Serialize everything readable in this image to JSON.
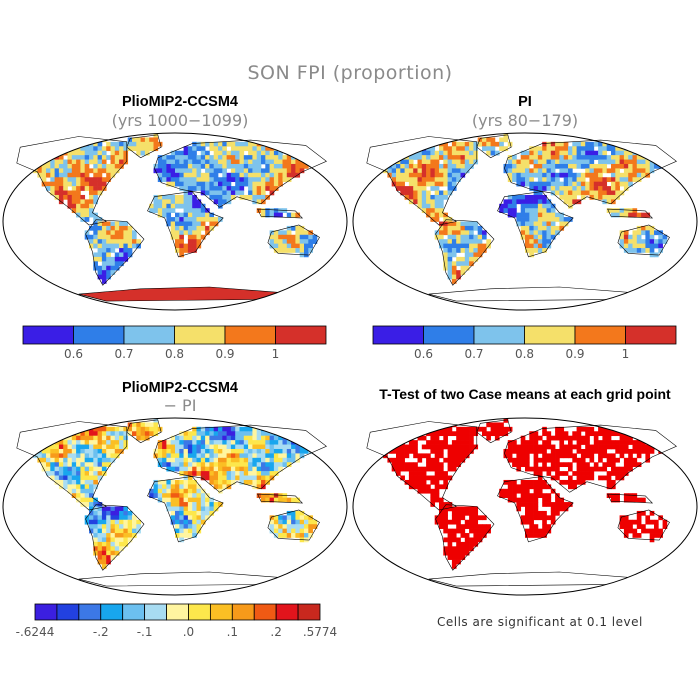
{
  "figure": {
    "title": "SON FPI (proportion)",
    "panels": [
      {
        "id": "a",
        "title": "PlioMIP2-CCSM4",
        "subtitle": "(yrs 1000−1099)"
      },
      {
        "id": "b",
        "title": "PI",
        "subtitle": "(yrs 80−179)"
      },
      {
        "id": "c",
        "title": "PlioMIP2-CCSM4",
        "subtitle": "− PI"
      },
      {
        "id": "d",
        "title": "T-Test of two Case means at each grid point",
        "subtitle": ""
      }
    ],
    "colorbar_top": {
      "colors": [
        "#3a1ee6",
        "#2f7ee8",
        "#7ec3ec",
        "#f5e06a",
        "#f3781c",
        "#d5302a"
      ],
      "labels": [
        "0.6",
        "0.7",
        "0.8",
        "0.9",
        "1"
      ]
    },
    "colorbar_diff": {
      "colors": [
        "#3b1fe0",
        "#2241e0",
        "#3c78e6",
        "#18a6ee",
        "#6cc0f0",
        "#a8dcf2",
        "#fff5a0",
        "#fde74c",
        "#fbbf24",
        "#f79a1a",
        "#f05a14",
        "#e2141c",
        "#c8281e"
      ],
      "labels": [
        "-.6244",
        "-.2",
        "-.1",
        ".0",
        ".1",
        ".2",
        ".5774"
      ]
    },
    "significance_note": "Cells are significant at 0.1 level",
    "significance_color": "#ee0000"
  }
}
